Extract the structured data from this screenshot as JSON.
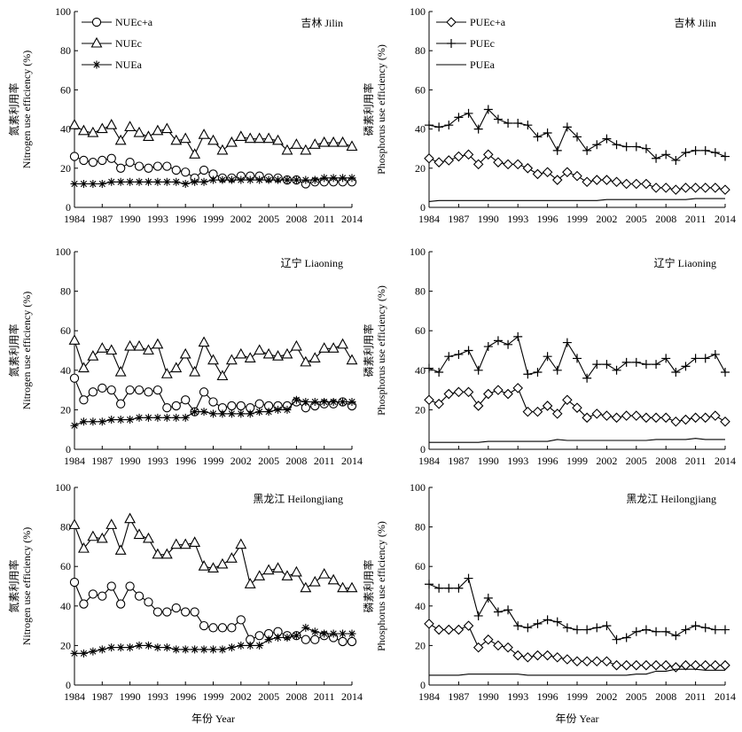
{
  "figure": {
    "xlabel": "年份 Year",
    "ylabel_n_cn": "氮素利用率",
    "ylabel_n_en": "Nitrogen use efficiency (%)",
    "ylabel_p_cn": "磷素利用率",
    "ylabel_p_en": "Phosphorus use efficiency (%)"
  },
  "chart_data": [
    {
      "type": "line",
      "region": "吉林 Jilin",
      "ylabel": "Nitrogen use efficiency (%)",
      "ylim": [
        0,
        100
      ],
      "yticks": [
        0,
        20,
        40,
        60,
        80,
        100
      ],
      "xlim": [
        1984,
        2014
      ],
      "xticks": [
        1984,
        1987,
        1990,
        1993,
        1996,
        1999,
        2002,
        2005,
        2008,
        2011,
        2014
      ],
      "legend": "top-left",
      "x": [
        1984,
        1985,
        1986,
        1987,
        1988,
        1989,
        1990,
        1991,
        1992,
        1993,
        1994,
        1995,
        1996,
        1997,
        1998,
        1999,
        2000,
        2001,
        2002,
        2003,
        2004,
        2005,
        2006,
        2007,
        2008,
        2009,
        2010,
        2011,
        2012,
        2013,
        2014
      ],
      "series": [
        {
          "name": "NUEc+a",
          "marker": "circle",
          "values": [
            26,
            24,
            23,
            24,
            25,
            20,
            23,
            21,
            20,
            21,
            21,
            19,
            18,
            15,
            19,
            17,
            15,
            15,
            16,
            16,
            16,
            15,
            15,
            14,
            14,
            12,
            13,
            13,
            13,
            13,
            13
          ]
        },
        {
          "name": "NUEc",
          "marker": "triangle",
          "values": [
            42,
            39,
            38,
            40,
            42,
            34,
            41,
            38,
            36,
            39,
            40,
            34,
            35,
            27,
            37,
            34,
            29,
            33,
            36,
            35,
            35,
            35,
            34,
            29,
            32,
            29,
            32,
            33,
            33,
            33,
            31
          ]
        },
        {
          "name": "NUEa",
          "marker": "star",
          "values": [
            12,
            12,
            12,
            12,
            13,
            13,
            13,
            13,
            13,
            13,
            13,
            13,
            12,
            13,
            13,
            14,
            14,
            14,
            14,
            14,
            14,
            14,
            14,
            14,
            14,
            14,
            14,
            15,
            15,
            15,
            15
          ]
        }
      ]
    },
    {
      "type": "line",
      "region": "吉林 Jilin",
      "ylabel": "Phosphorus use efficiency (%)",
      "ylim": [
        0,
        100
      ],
      "yticks": [
        0,
        20,
        40,
        60,
        80,
        100
      ],
      "xlim": [
        1984,
        2014
      ],
      "xticks": [
        1984,
        1987,
        1990,
        1993,
        1996,
        1999,
        2002,
        2005,
        2008,
        2011,
        2014
      ],
      "legend": "top-left",
      "x": [
        1984,
        1985,
        1986,
        1987,
        1988,
        1989,
        1990,
        1991,
        1992,
        1993,
        1994,
        1995,
        1996,
        1997,
        1998,
        1999,
        2000,
        2001,
        2002,
        2003,
        2004,
        2005,
        2006,
        2007,
        2008,
        2009,
        2010,
        2011,
        2012,
        2013,
        2014
      ],
      "series": [
        {
          "name": "PUEc+a",
          "marker": "diamond",
          "values": [
            25,
            23,
            24,
            26,
            27,
            22,
            27,
            23,
            22,
            22,
            20,
            17,
            18,
            14,
            18,
            16,
            13,
            14,
            14,
            13,
            12,
            12,
            12,
            10,
            10,
            9,
            10,
            10,
            10,
            10,
            9
          ]
        },
        {
          "name": "PUEc",
          "marker": "plus",
          "values": [
            42,
            41,
            42,
            46,
            48,
            40,
            50,
            45,
            43,
            43,
            42,
            36,
            38,
            29,
            41,
            36,
            29,
            32,
            35,
            32,
            31,
            31,
            30,
            25,
            27,
            24,
            28,
            29,
            29,
            28,
            26
          ]
        },
        {
          "name": "PUEa",
          "marker": "none",
          "values": [
            3,
            3.5,
            3.5,
            3.5,
            3.5,
            3.5,
            3.5,
            3.5,
            3.5,
            3.5,
            3.5,
            3.5,
            3.5,
            3.5,
            3.5,
            3.5,
            3.5,
            3.5,
            4,
            4,
            4,
            4,
            4,
            4,
            4,
            4,
            4,
            4.5,
            4.5,
            4.5,
            4.5
          ]
        }
      ]
    },
    {
      "type": "line",
      "region": "辽宁 Liaoning",
      "ylabel": "Nitrogen use efficiency (%)",
      "ylim": [
        0,
        100
      ],
      "yticks": [
        0,
        20,
        40,
        60,
        80,
        100
      ],
      "xlim": [
        1984,
        2014
      ],
      "xticks": [
        1984,
        1987,
        1990,
        1993,
        1996,
        1999,
        2002,
        2005,
        2008,
        2011,
        2014
      ],
      "x": [
        1984,
        1985,
        1986,
        1987,
        1988,
        1989,
        1990,
        1991,
        1992,
        1993,
        1994,
        1995,
        1996,
        1997,
        1998,
        1999,
        2000,
        2001,
        2002,
        2003,
        2004,
        2005,
        2006,
        2007,
        2008,
        2009,
        2010,
        2011,
        2012,
        2013,
        2014
      ],
      "series": [
        {
          "name": "NUEc+a",
          "marker": "circle",
          "values": [
            36,
            25,
            29,
            31,
            30,
            23,
            30,
            30,
            29,
            30,
            21,
            22,
            25,
            19,
            29,
            24,
            21,
            22,
            22,
            21,
            23,
            22,
            22,
            22,
            24,
            21,
            22,
            23,
            23,
            24,
            22
          ]
        },
        {
          "name": "NUEc",
          "marker": "triangle",
          "values": [
            55,
            41,
            47,
            51,
            50,
            39,
            52,
            52,
            50,
            53,
            38,
            41,
            48,
            39,
            54,
            45,
            37,
            45,
            48,
            46,
            50,
            48,
            47,
            48,
            52,
            44,
            46,
            51,
            51,
            53,
            45
          ]
        },
        {
          "name": "NUEa",
          "marker": "star",
          "values": [
            12,
            14,
            14,
            14,
            15,
            15,
            15,
            16,
            16,
            16,
            16,
            16,
            16,
            19,
            19,
            18,
            18,
            18,
            18,
            18,
            19,
            19,
            20,
            20,
            25,
            24,
            24,
            24,
            24,
            24,
            24
          ]
        }
      ]
    },
    {
      "type": "line",
      "region": "辽宁 Liaoning",
      "ylabel": "Phosphorus use efficiency (%)",
      "ylim": [
        0,
        100
      ],
      "yticks": [
        0,
        20,
        40,
        60,
        80,
        100
      ],
      "xlim": [
        1984,
        2014
      ],
      "xticks": [
        1984,
        1987,
        1990,
        1993,
        1996,
        1999,
        2002,
        2005,
        2008,
        2011,
        2014
      ],
      "x": [
        1984,
        1985,
        1986,
        1987,
        1988,
        1989,
        1990,
        1991,
        1992,
        1993,
        1994,
        1995,
        1996,
        1997,
        1998,
        1999,
        2000,
        2001,
        2002,
        2003,
        2004,
        2005,
        2006,
        2007,
        2008,
        2009,
        2010,
        2011,
        2012,
        2013,
        2014
      ],
      "series": [
        {
          "name": "PUEc+a",
          "marker": "diamond",
          "values": [
            25,
            23,
            28,
            29,
            29,
            22,
            28,
            30,
            28,
            31,
            19,
            19,
            22,
            18,
            25,
            21,
            16,
            18,
            17,
            16,
            17,
            17,
            16,
            16,
            16,
            14,
            15,
            16,
            16,
            17,
            14
          ]
        },
        {
          "name": "PUEc",
          "marker": "plus",
          "values": [
            41,
            39,
            47,
            48,
            50,
            40,
            52,
            55,
            53,
            57,
            38,
            39,
            47,
            40,
            54,
            46,
            36,
            43,
            43,
            40,
            44,
            44,
            43,
            43,
            46,
            39,
            42,
            46,
            46,
            48,
            39
          ]
        },
        {
          "name": "PUEa",
          "marker": "none",
          "values": [
            3.5,
            3.5,
            3.5,
            3.5,
            3.5,
            3.5,
            4,
            4,
            4,
            4,
            4,
            4,
            4,
            5,
            4.5,
            4.5,
            4.5,
            4.5,
            4.5,
            4.5,
            4.5,
            4.5,
            4.5,
            5,
            5,
            5,
            5,
            5.5,
            5,
            5,
            5
          ]
        }
      ]
    },
    {
      "type": "line",
      "region": "黑龙江 Heilongjiang",
      "ylabel": "Nitrogen use efficiency (%)",
      "ylim": [
        0,
        100
      ],
      "yticks": [
        0,
        20,
        40,
        60,
        80,
        100
      ],
      "xlim": [
        1984,
        2014
      ],
      "xticks": [
        1984,
        1987,
        1990,
        1993,
        1996,
        1999,
        2002,
        2005,
        2008,
        2011,
        2014
      ],
      "x": [
        1984,
        1985,
        1986,
        1987,
        1988,
        1989,
        1990,
        1991,
        1992,
        1993,
        1994,
        1995,
        1996,
        1997,
        1998,
        1999,
        2000,
        2001,
        2002,
        2003,
        2004,
        2005,
        2006,
        2007,
        2008,
        2009,
        2010,
        2011,
        2012,
        2013,
        2014
      ],
      "series": [
        {
          "name": "NUEc+a",
          "marker": "circle",
          "values": [
            52,
            41,
            46,
            45,
            50,
            41,
            50,
            45,
            42,
            37,
            37,
            39,
            37,
            37,
            30,
            29,
            29,
            29,
            33,
            23,
            25,
            26,
            27,
            25,
            25,
            23,
            23,
            25,
            24,
            22,
            22
          ]
        },
        {
          "name": "NUEc",
          "marker": "triangle",
          "values": [
            81,
            69,
            75,
            74,
            81,
            68,
            84,
            76,
            74,
            66,
            66,
            71,
            71,
            72,
            60,
            59,
            61,
            64,
            71,
            51,
            55,
            58,
            59,
            55,
            57,
            49,
            52,
            56,
            53,
            49,
            49
          ]
        },
        {
          "name": "NUEa",
          "marker": "star",
          "values": [
            16,
            16,
            17,
            18,
            19,
            19,
            19,
            20,
            20,
            19,
            19,
            18,
            18,
            18,
            18,
            18,
            18,
            19,
            20,
            20,
            20,
            23,
            24,
            24,
            25,
            29,
            27,
            26,
            26,
            26,
            26
          ]
        }
      ]
    },
    {
      "type": "line",
      "region": "黑龙江 Heilongjiang",
      "ylabel": "Phosphorus use efficiency (%)",
      "ylim": [
        0,
        100
      ],
      "yticks": [
        0,
        20,
        40,
        60,
        80,
        100
      ],
      "xlim": [
        1984,
        2014
      ],
      "xticks": [
        1984,
        1987,
        1990,
        1993,
        1996,
        1999,
        2002,
        2005,
        2008,
        2011,
        2014
      ],
      "x": [
        1984,
        1985,
        1986,
        1987,
        1988,
        1989,
        1990,
        1991,
        1992,
        1993,
        1994,
        1995,
        1996,
        1997,
        1998,
        1999,
        2000,
        2001,
        2002,
        2003,
        2004,
        2005,
        2006,
        2007,
        2008,
        2009,
        2010,
        2011,
        2012,
        2013,
        2014
      ],
      "series": [
        {
          "name": "PUEc+a",
          "marker": "diamond",
          "values": [
            31,
            28,
            28,
            28,
            30,
            19,
            23,
            20,
            19,
            15,
            14,
            15,
            15,
            14,
            13,
            12,
            12,
            12,
            12,
            10,
            10,
            10,
            10,
            10,
            10,
            9,
            10,
            10,
            10,
            10,
            10
          ]
        },
        {
          "name": "PUEc",
          "marker": "plus",
          "values": [
            51,
            49,
            49,
            49,
            54,
            35,
            44,
            37,
            38,
            30,
            29,
            31,
            33,
            32,
            29,
            28,
            28,
            29,
            30,
            23,
            24,
            27,
            28,
            27,
            27,
            25,
            28,
            30,
            29,
            28,
            28
          ]
        },
        {
          "name": "PUEa",
          "marker": "none",
          "values": [
            5,
            5,
            5,
            5,
            5.5,
            5.5,
            5.5,
            5.5,
            5.5,
            5.5,
            5,
            5,
            5,
            5,
            5,
            5,
            5,
            5,
            5,
            5,
            5,
            5.5,
            5.5,
            7,
            7,
            8,
            8,
            8,
            7.5,
            7.5,
            7.5
          ]
        }
      ]
    }
  ]
}
